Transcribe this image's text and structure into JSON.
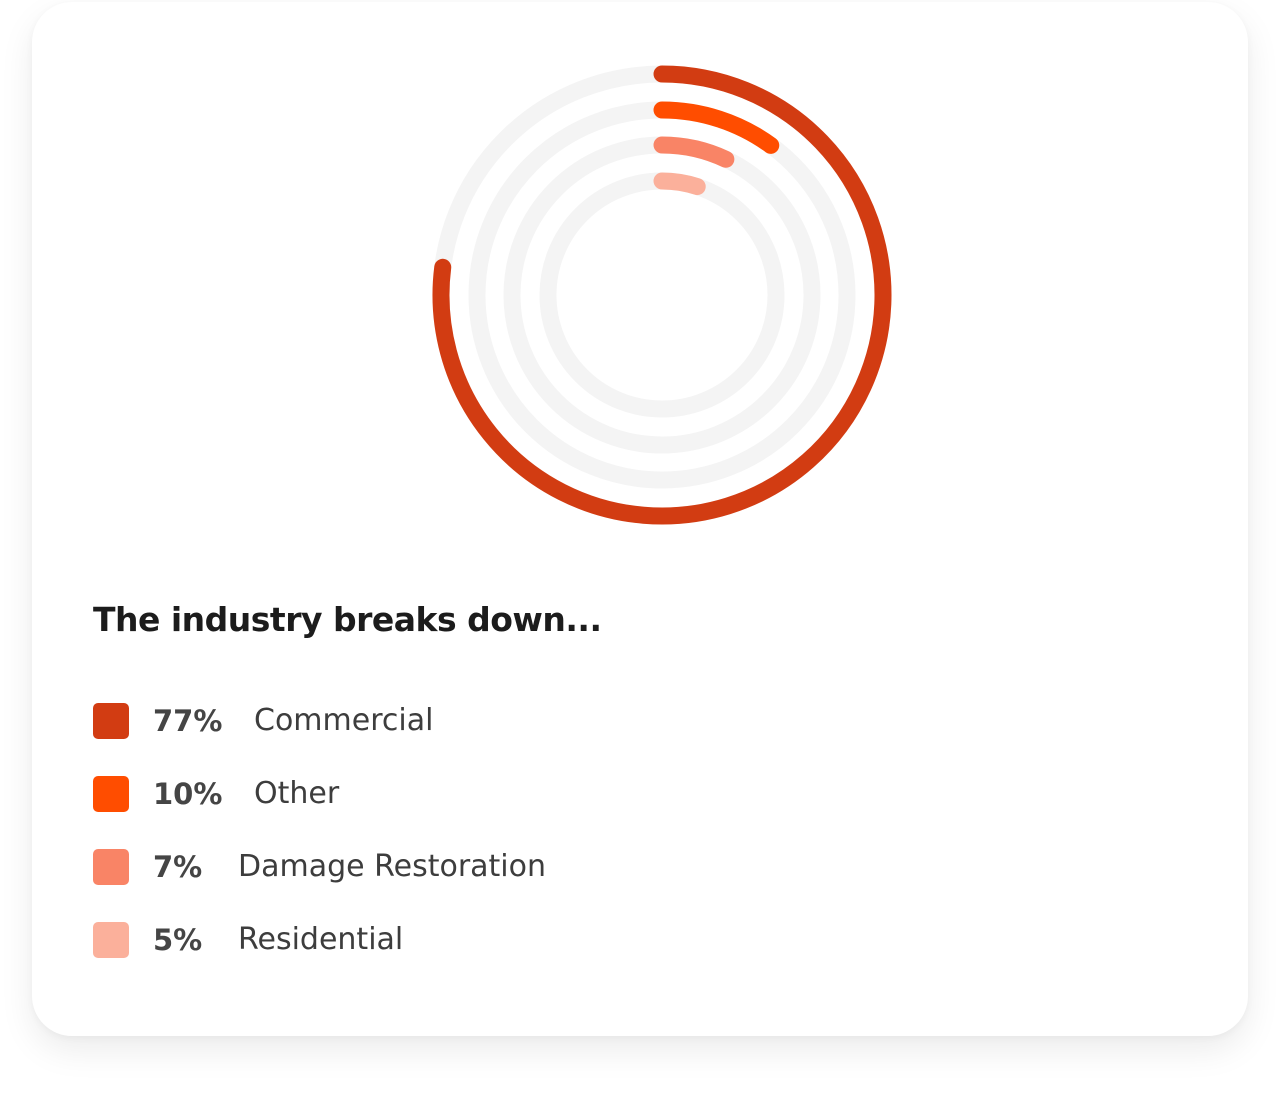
{
  "heading": "The industry breaks down...",
  "chart_data": {
    "type": "radial_bar",
    "max": 100,
    "track_color": "#f4f4f4",
    "series": [
      {
        "label": "Commercial",
        "value": 77,
        "value_label": "77%",
        "color": "#d23c12"
      },
      {
        "label": "Other",
        "value": 10,
        "value_label": "10%",
        "color": "#ff4d00"
      },
      {
        "label": "Damage Restoration",
        "value": 7,
        "value_label": "7%",
        "color": "#f98466"
      },
      {
        "label": "Residential",
        "value": 5,
        "value_label": "5%",
        "color": "#fbb09b"
      }
    ]
  }
}
